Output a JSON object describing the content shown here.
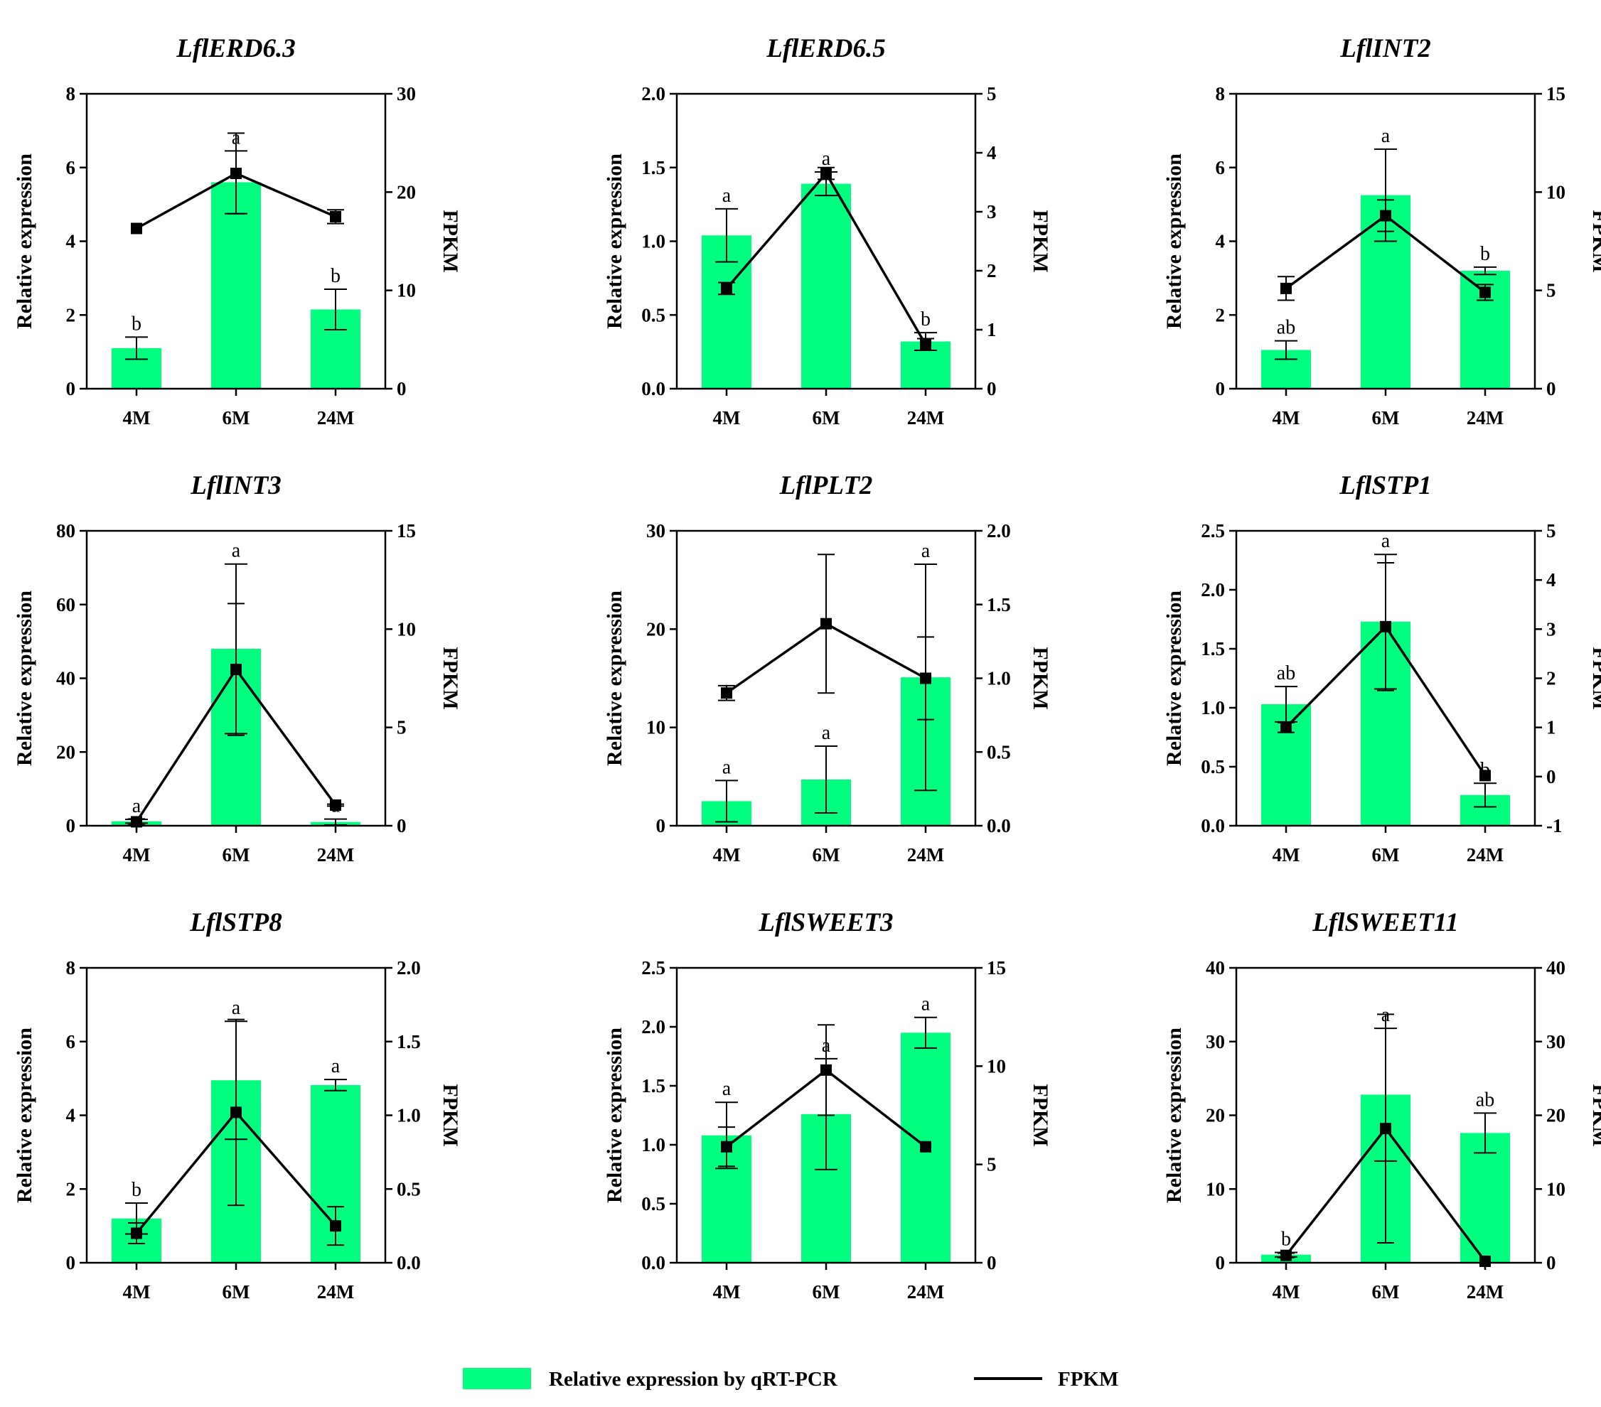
{
  "legend": {
    "bar_label": "Relative expression by qRT-PCR",
    "line_label": "FPKM",
    "bar_color": "#00ff7f",
    "line_color": "#000000"
  },
  "chart_data": [
    {
      "type": "bar+line",
      "title": "LflERD6.3",
      "categories": [
        "4M",
        "6M",
        "24M"
      ],
      "ylabel": "Relative expression",
      "y2label": "FPKM",
      "ylim": [
        0,
        8
      ],
      "yticks": [
        0,
        2,
        4,
        6,
        8
      ],
      "y2lim": [
        0,
        30
      ],
      "y2ticks": [
        0,
        10,
        20,
        30
      ],
      "bars": {
        "values": [
          1.1,
          5.6,
          2.15
        ],
        "errors": [
          0.3,
          0.85,
          0.55
        ],
        "labels": [
          "b",
          "a",
          "b"
        ]
      },
      "line": {
        "values": [
          16.3,
          21.9,
          17.5
        ],
        "errors": [
          0,
          4.1,
          0.7
        ]
      }
    },
    {
      "type": "bar+line",
      "title": "LflERD6.5",
      "categories": [
        "4M",
        "6M",
        "24M"
      ],
      "ylabel": "Relative expression",
      "y2label": "FPKM",
      "ylim": [
        0,
        2.0
      ],
      "yticks": [
        0.0,
        0.5,
        1.0,
        1.5,
        2.0
      ],
      "y2lim": [
        0,
        5
      ],
      "y2ticks": [
        0,
        1,
        2,
        3,
        4,
        5
      ],
      "bars": {
        "values": [
          1.04,
          1.39,
          0.32
        ],
        "errors": [
          0.18,
          0.08,
          0.06
        ],
        "labels": [
          "a",
          "a",
          "b"
        ]
      },
      "line": {
        "values": [
          1.7,
          3.65,
          0.75
        ],
        "errors": [
          0.1,
          0.1,
          0.1
        ]
      }
    },
    {
      "type": "bar+line",
      "title": "LflINT2",
      "categories": [
        "4M",
        "6M",
        "24M"
      ],
      "ylabel": "Relative expression",
      "y2label": "FPKM",
      "ylim": [
        0,
        8
      ],
      "yticks": [
        0,
        2,
        4,
        6,
        8
      ],
      "y2lim": [
        0,
        15
      ],
      "y2ticks": [
        0,
        5,
        10,
        15
      ],
      "bars": {
        "values": [
          1.05,
          5.25,
          3.2
        ],
        "errors": [
          0.25,
          1.25,
          0.1
        ],
        "labels": [
          "ab",
          "a",
          "b"
        ]
      },
      "line": {
        "values": [
          5.1,
          8.8,
          4.9
        ],
        "errors": [
          0.6,
          0.8,
          0.4
        ]
      }
    },
    {
      "type": "bar+line",
      "title": "LflINT3",
      "categories": [
        "4M",
        "6M",
        "24M"
      ],
      "ylabel": "Relative expression",
      "y2label": "FPKM",
      "ylim": [
        0,
        80
      ],
      "yticks": [
        0,
        20,
        40,
        60,
        80
      ],
      "y2lim": [
        0,
        15
      ],
      "y2ticks": [
        0,
        5,
        10,
        15
      ],
      "bars": {
        "values": [
          1.2,
          48,
          1.0
        ],
        "errors": [
          0.5,
          23,
          0.8
        ],
        "labels": [
          "a",
          "a",
          "a"
        ]
      },
      "line": {
        "values": [
          0.2,
          7.95,
          1.05
        ],
        "errors": [
          0.15,
          3.35,
          0.05
        ]
      }
    },
    {
      "type": "bar+line",
      "title": "LflPLT2",
      "categories": [
        "4M",
        "6M",
        "24M"
      ],
      "ylabel": "Relative expression",
      "y2label": "FPKM",
      "ylim": [
        0,
        30
      ],
      "yticks": [
        0,
        10,
        20,
        30
      ],
      "y2lim": [
        0,
        2.0
      ],
      "y2ticks": [
        0.0,
        0.5,
        1.0,
        1.5,
        2.0
      ],
      "bars": {
        "values": [
          2.5,
          4.7,
          15.1
        ],
        "errors": [
          2.1,
          3.4,
          11.5
        ],
        "labels": [
          "a",
          "a",
          "a"
        ]
      },
      "line": {
        "values": [
          0.9,
          1.37,
          1.0
        ],
        "errors": [
          0.05,
          0.47,
          0.28
        ]
      }
    },
    {
      "type": "bar+line",
      "title": "LflSTP1",
      "categories": [
        "4M",
        "6M",
        "24M"
      ],
      "ylabel": "Relative expression",
      "y2label": "FPKM",
      "ylim": [
        0,
        2.5
      ],
      "yticks": [
        0.0,
        0.5,
        1.0,
        1.5,
        2.0,
        2.5
      ],
      "y2lim": [
        -1,
        5
      ],
      "y2ticks": [
        -1,
        0,
        1,
        2,
        3,
        4,
        5
      ],
      "bars": {
        "values": [
          1.03,
          1.73,
          0.26
        ],
        "errors": [
          0.15,
          0.57,
          0.1
        ],
        "labels": [
          "ab",
          "a",
          "b"
        ]
      },
      "line": {
        "values": [
          1.0,
          3.05,
          0.02
        ],
        "errors": [
          0.1,
          1.3,
          0.0
        ]
      }
    },
    {
      "type": "bar+line",
      "title": "LflSTP8",
      "categories": [
        "4M",
        "6M",
        "24M"
      ],
      "ylabel": "Relative expression",
      "y2label": "FPKM",
      "ylim": [
        0,
        8
      ],
      "yticks": [
        0,
        2,
        4,
        6,
        8
      ],
      "y2lim": [
        0,
        2.0
      ],
      "y2ticks": [
        0.0,
        0.5,
        1.0,
        1.5,
        2.0
      ],
      "bars": {
        "values": [
          1.2,
          4.95,
          4.82
        ],
        "errors": [
          0.42,
          1.6,
          0.15
        ],
        "labels": [
          "b",
          "a",
          "a"
        ]
      },
      "line": {
        "values": [
          0.2,
          1.02,
          0.25
        ],
        "errors": [
          0.07,
          0.63,
          0.13
        ]
      }
    },
    {
      "type": "bar+line",
      "title": "LflSWEET3",
      "categories": [
        "4M",
        "6M",
        "24M"
      ],
      "ylabel": "Relative expression",
      "y2label": "FPKM",
      "ylim": [
        0,
        2.5
      ],
      "yticks": [
        0.0,
        0.5,
        1.0,
        1.5,
        2.0,
        2.5
      ],
      "y2lim": [
        0,
        15
      ],
      "y2ticks": [
        0,
        5,
        10,
        15
      ],
      "bars": {
        "values": [
          1.08,
          1.26,
          1.95
        ],
        "errors": [
          0.28,
          0.47,
          0.13
        ],
        "labels": [
          "a",
          "a",
          "a"
        ]
      },
      "line": {
        "values": [
          5.9,
          9.8,
          5.9
        ],
        "errors": [
          1.0,
          2.3,
          0.0
        ]
      }
    },
    {
      "type": "bar+line",
      "title": "LflSWEET11",
      "categories": [
        "4M",
        "6M",
        "24M"
      ],
      "ylabel": "Relative expression",
      "y2label": "FPKM",
      "ylim": [
        0,
        40
      ],
      "yticks": [
        0,
        10,
        20,
        30,
        40
      ],
      "y2lim": [
        0,
        40
      ],
      "y2ticks": [
        0,
        10,
        20,
        30,
        40
      ],
      "bars": {
        "values": [
          1.1,
          22.8,
          17.6
        ],
        "errors": [
          0.3,
          9.0,
          2.7
        ],
        "labels": [
          "b",
          "a",
          "ab"
        ]
      },
      "line": {
        "values": [
          1.0,
          18.2,
          0.2
        ],
        "errors": [
          0.3,
          15.5,
          0.0
        ]
      }
    }
  ]
}
